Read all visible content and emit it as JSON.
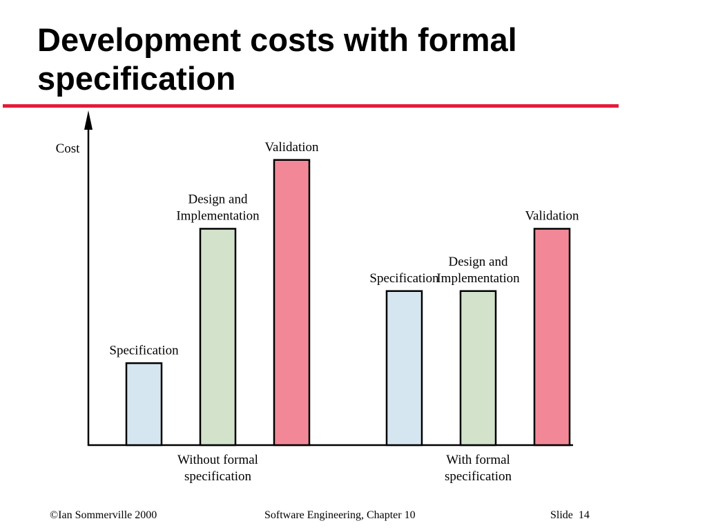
{
  "slide": {
    "title": "Development costs with formal specification"
  },
  "colors": {
    "accent_rule": "#e41a3a",
    "specification": "#d6e6f0",
    "design_and_implementation": "#d3e3cb",
    "validation": "#f28897"
  },
  "chart_data": {
    "type": "bar",
    "ylabel": "Cost",
    "xlabel": "",
    "axis_ticks": "none",
    "grid": false,
    "legend": "none",
    "value_unit": "relative cost (axis unlabelled, estimated from bar heights)",
    "ylim": [
      0,
      100
    ],
    "groups": [
      {
        "label": [
          "Without formal",
          "specification"
        ],
        "bars": [
          {
            "label": [
              "Specification"
            ],
            "phase": "specification",
            "value": 25
          },
          {
            "label": [
              "Design and",
              "Implementation"
            ],
            "phase": "design_and_implementation",
            "value": 66
          },
          {
            "label": [
              "Validation"
            ],
            "phase": "validation",
            "value": 87
          }
        ]
      },
      {
        "label": [
          "With formal",
          "specification"
        ],
        "bars": [
          {
            "label": [
              "Specification"
            ],
            "phase": "specification",
            "value": 47
          },
          {
            "label": [
              "Design and",
              "Implementation"
            ],
            "phase": "design_and_implementation",
            "value": 47
          },
          {
            "label": [
              "Validation"
            ],
            "phase": "validation",
            "value": 66
          }
        ]
      }
    ]
  },
  "footer": {
    "copyright": "©Ian Sommerville 2000",
    "course": "Software Engineering, Chapter 10",
    "slide_label": "Slide  14"
  }
}
